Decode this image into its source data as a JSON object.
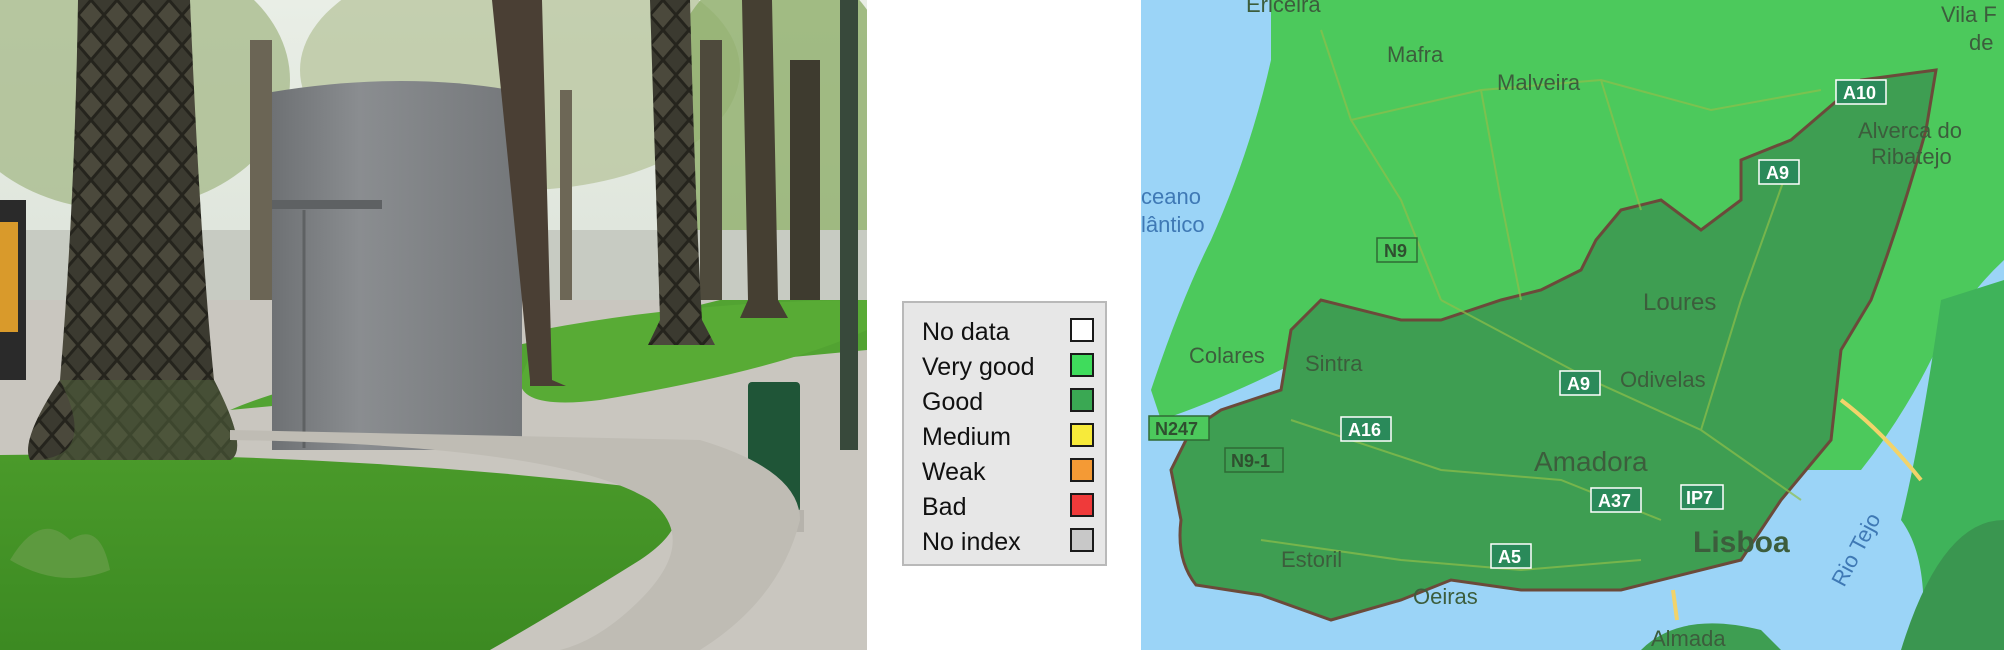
{
  "photo": {
    "description_icon": "park-photo"
  },
  "legend": {
    "items": [
      {
        "label": "No data",
        "color": "#ffffff"
      },
      {
        "label": "Very good",
        "color": "#3fdc5c"
      },
      {
        "label": "Good",
        "color": "#3aa853"
      },
      {
        "label": "Medium",
        "color": "#f7ea3a"
      },
      {
        "label": "Weak",
        "color": "#f49a35"
      },
      {
        "label": "Bad",
        "color": "#ef3a3a"
      },
      {
        "label": "No index",
        "color": "#c8c8c8"
      }
    ]
  },
  "map": {
    "water_color": "#9bd4f7",
    "very_good_color": "#4cc95c",
    "good_color": "#3e9e52",
    "places": [
      "Ericeira",
      "Mafra",
      "Malveira",
      "Vila F",
      "de",
      "Alverca do",
      "Ribatejo",
      "ceano",
      "lântico",
      "Loures",
      "Colares",
      "Sintra",
      "Odivelas",
      "Amadora",
      "Estoril",
      "Oeiras",
      "Lisboa",
      "Almada",
      "Rio Tejo"
    ],
    "roads": [
      "A10",
      "A9",
      "N9",
      "A9",
      "N247",
      "A16",
      "N9-1",
      "A37",
      "IP7",
      "A5"
    ]
  }
}
